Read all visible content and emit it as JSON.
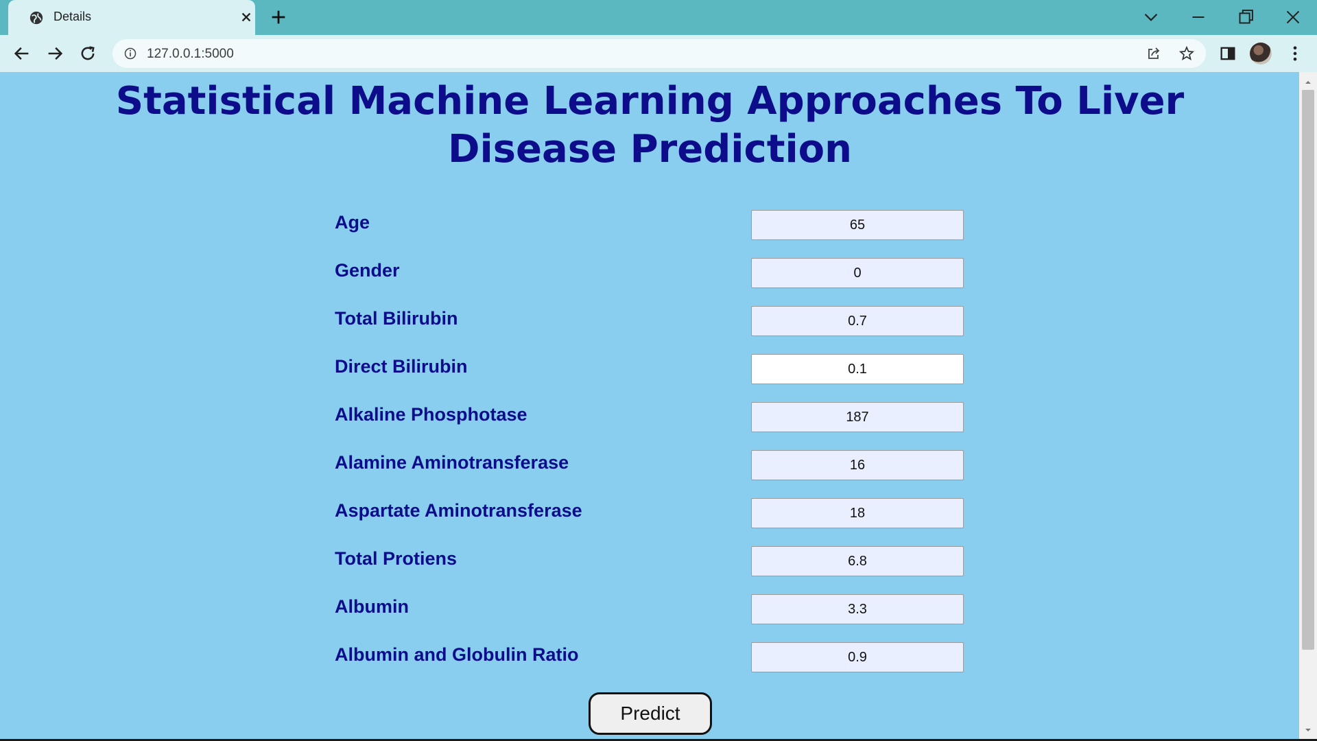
{
  "browser": {
    "tab_title": "Details",
    "url": "127.0.0.1:5000"
  },
  "page": {
    "title": "Statistical Machine Learning Approaches To Liver Disease Prediction",
    "background_color": "#89ceee",
    "title_color": "#0d0d8c",
    "fields": [
      {
        "label": "Age",
        "value": "65"
      },
      {
        "label": "Gender",
        "value": "0"
      },
      {
        "label": "Total Bilirubin",
        "value": "0.7"
      },
      {
        "label": "Direct Bilirubin",
        "value": "0.1"
      },
      {
        "label": "Alkaline Phosphotase",
        "value": "187"
      },
      {
        "label": "Alamine Aminotransferase",
        "value": "16"
      },
      {
        "label": "Aspartate Aminotransferase",
        "value": "18"
      },
      {
        "label": "Total Protiens",
        "value": "6.8"
      },
      {
        "label": "Albumin",
        "value": "3.3"
      },
      {
        "label": "Albumin and Globulin Ratio",
        "value": "0.9"
      }
    ],
    "predict_label": "Predict"
  },
  "icons": {
    "tab": "globe-icon",
    "tab_close": "close-icon",
    "new_tab": "plus-icon",
    "back": "arrow-left-icon",
    "forward": "arrow-right-icon",
    "reload": "reload-icon",
    "site_info": "info-icon",
    "share": "share-icon",
    "bookmark": "star-icon",
    "side_panel": "side-panel-icon",
    "menu": "kebab-menu-icon"
  }
}
